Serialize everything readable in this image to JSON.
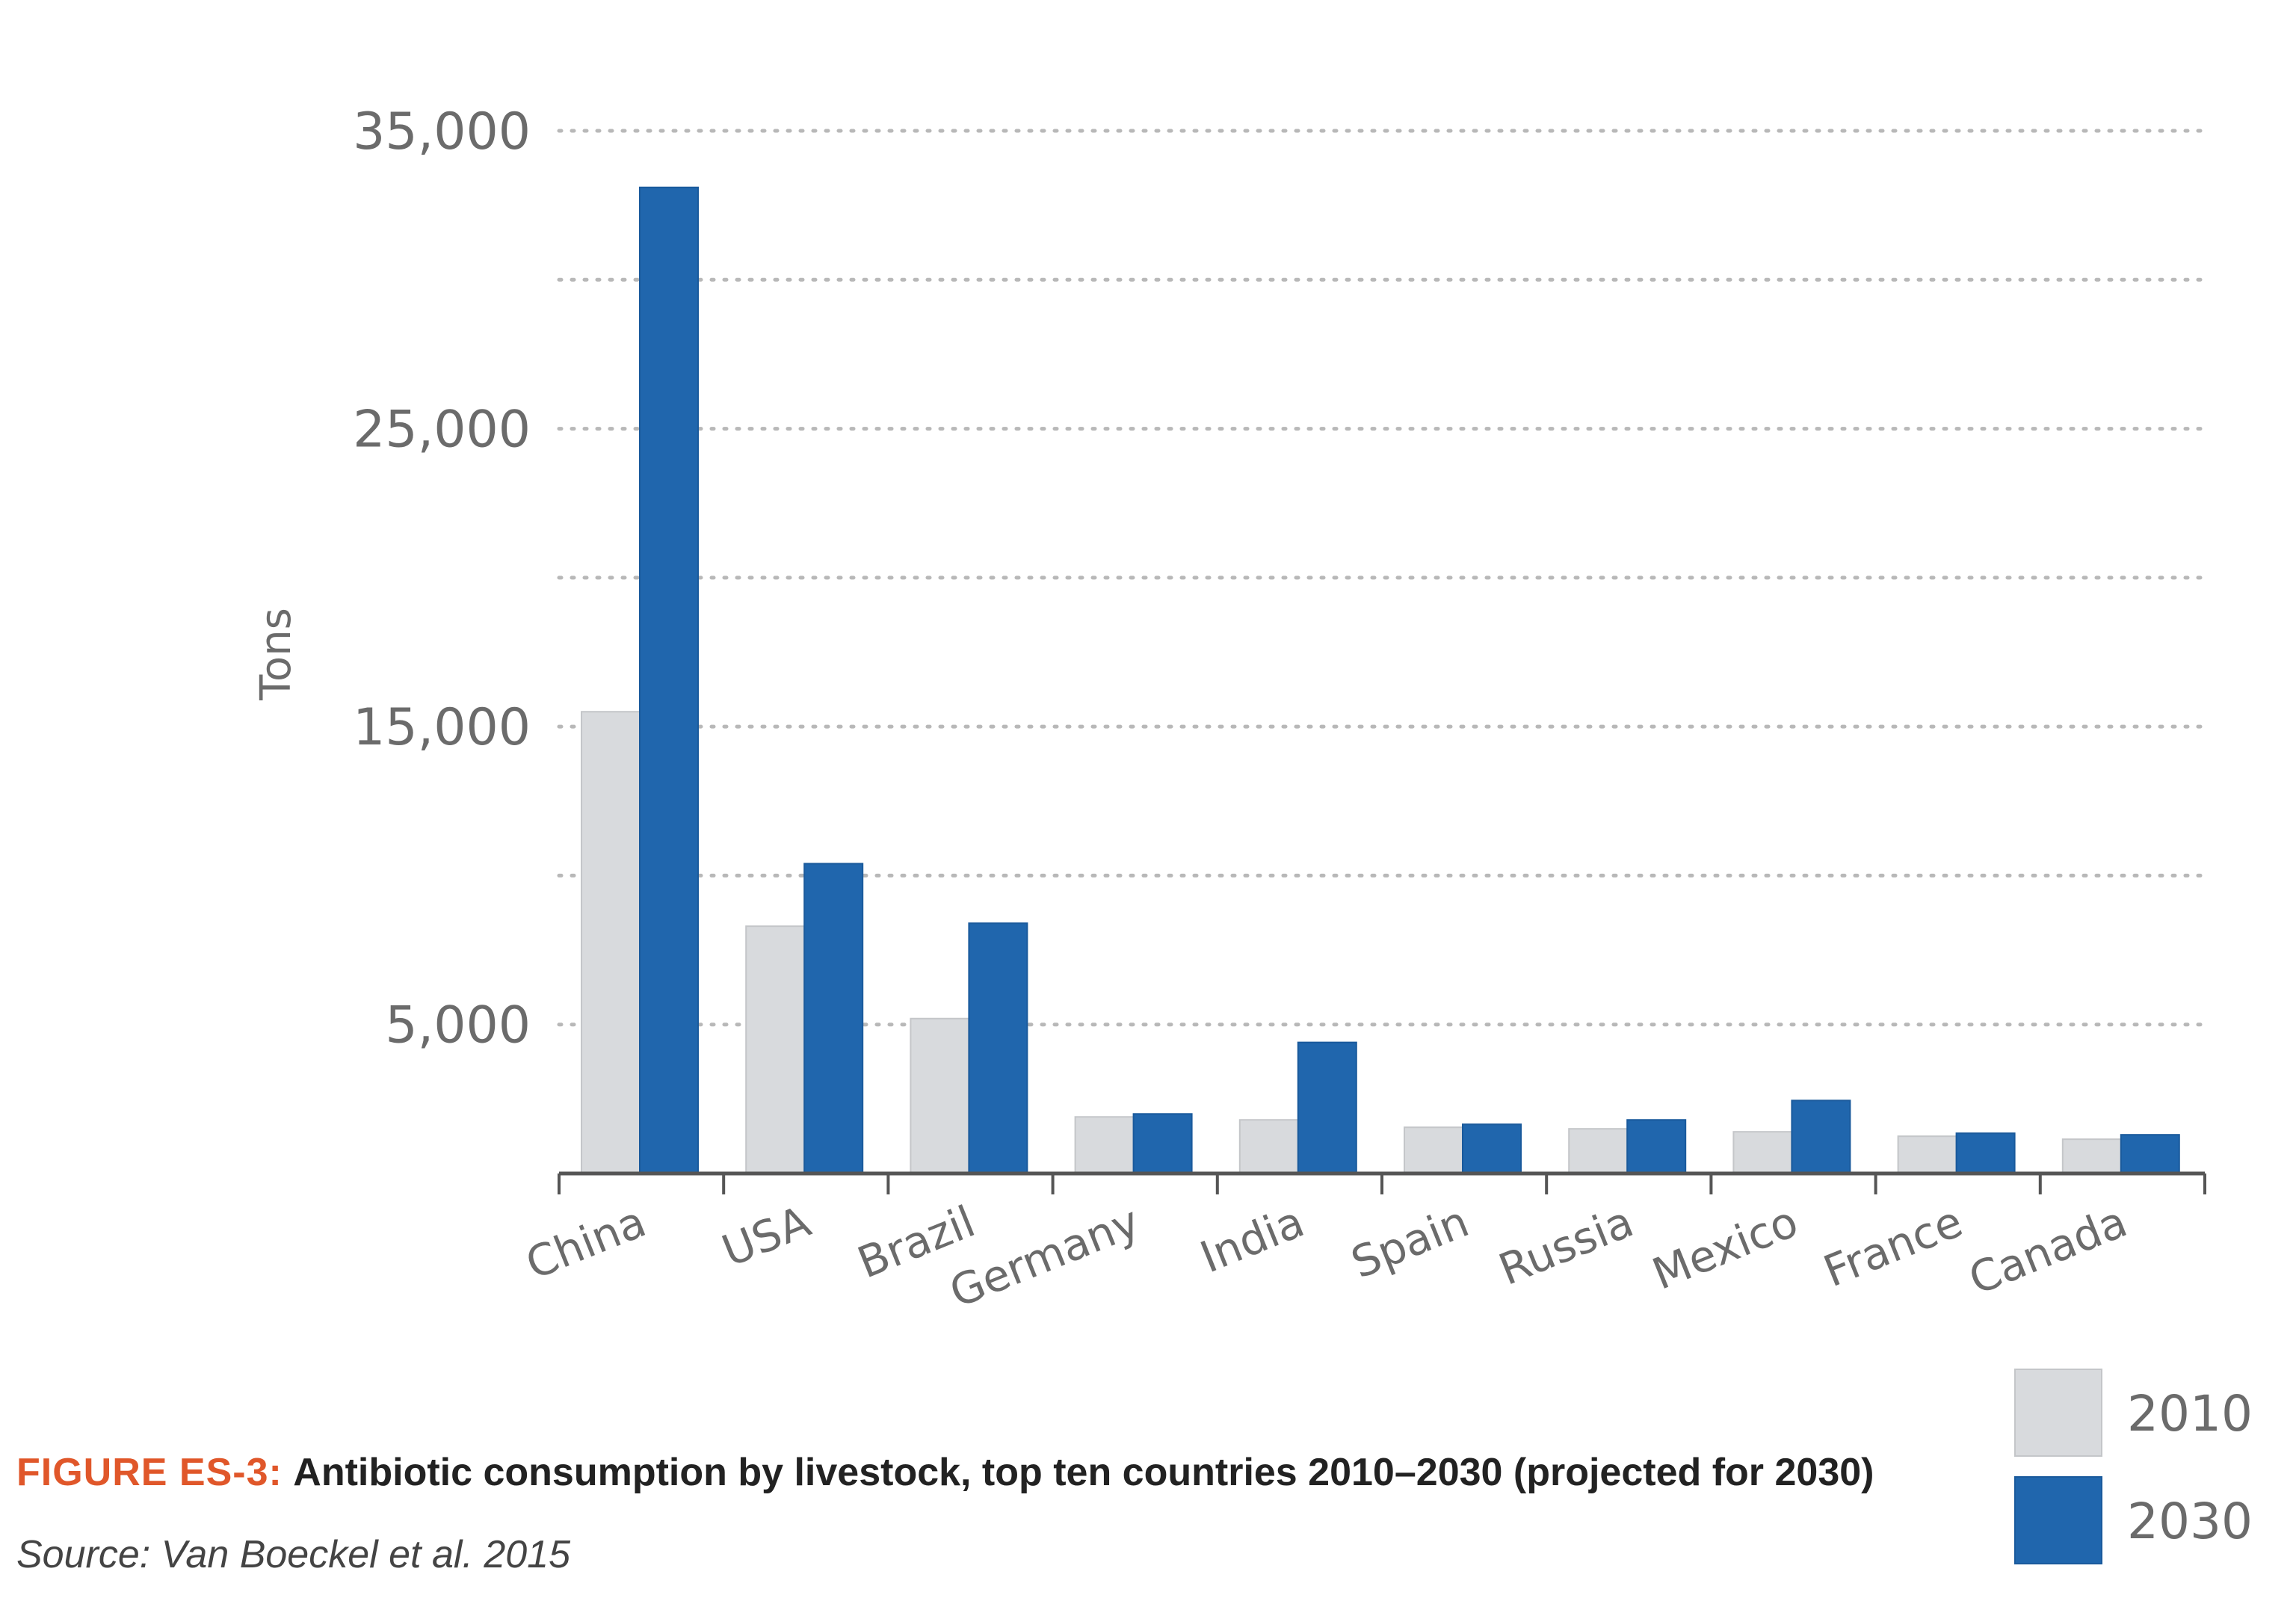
{
  "chart_data": {
    "type": "bar",
    "categories": [
      "China",
      "USA",
      "Brazil",
      "Germany",
      "India",
      "Spain",
      "Russia",
      "Mexico",
      "France",
      "Canada"
    ],
    "series": [
      {
        "name": "2010",
        "color": "#d8dadd",
        "values": [
          15500,
          8300,
          5200,
          1900,
          1800,
          1550,
          1500,
          1400,
          1250,
          1150
        ]
      },
      {
        "name": "2030",
        "color": "#2066ad",
        "values": [
          33100,
          10400,
          8400,
          2000,
          4400,
          1650,
          1800,
          2450,
          1350,
          1300
        ]
      }
    ],
    "ylabel": "Tons",
    "ylim": [
      0,
      35000
    ],
    "yticks": [
      5000,
      15000,
      25000,
      35000
    ],
    "ytick_labels": [
      "5,000",
      "15,000",
      "25,000",
      "35,000"
    ],
    "gridlines": [
      5000,
      10000,
      15000,
      20000,
      25000,
      30000,
      35000
    ],
    "grid": true,
    "legend_position": "bottom-right"
  },
  "caption": {
    "label": "FIGURE ES-3:",
    "text": "Antibiotic consumption by livestock, top ten countries 2010–2030 (projected for 2030)"
  },
  "source": "Source: Van Boeckel et al. 2015"
}
